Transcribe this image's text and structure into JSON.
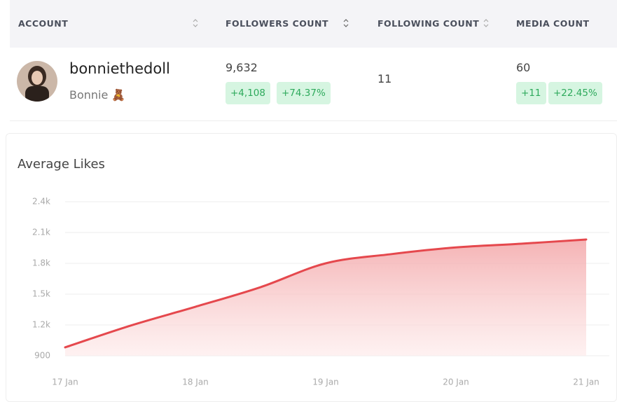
{
  "table": {
    "headers": [
      "ACCOUNT",
      "FOLLOWERS COUNT",
      "FOLLOWING COUNT",
      "MEDIA COUNT"
    ],
    "row": {
      "username": "bonniethedoll",
      "name": "Bonnie 🧸",
      "followers": "9,632",
      "followers_change": [
        "+4,108",
        "+74.37%"
      ],
      "following": "11",
      "media": "60",
      "media_change": [
        "+11",
        "+22.45%"
      ]
    }
  },
  "chart_data": {
    "type": "area",
    "title": "Average Likes",
    "categories": [
      "17 Jan",
      null,
      "18 Jan",
      null,
      "19 Jan",
      null,
      "20 Jan",
      null,
      "21 Jan"
    ],
    "values": [
      982,
      1193,
      1377,
      1568,
      1800,
      1889,
      1955,
      1991,
      2032
    ],
    "color": "#e5484d",
    "ylim": [
      900,
      2400
    ],
    "yticks": [
      900,
      {
        "value": 1200,
        "label": "1.2k"
      },
      {
        "value": 1500,
        "label": "1.5k"
      },
      {
        "value": 1800,
        "label": "1.8k"
      },
      {
        "value": 2100,
        "label": "2.1k"
      },
      {
        "value": 2400,
        "label": "2.4k"
      }
    ],
    "grid": true
  }
}
